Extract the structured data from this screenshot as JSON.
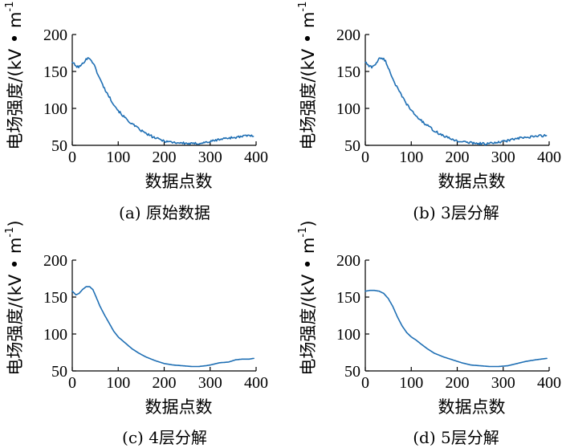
{
  "chart_data": [
    {
      "type": "line",
      "caption": "(a)  原始数据",
      "xlabel": "数据点数",
      "ylabel_main": "电场强度/(kV • m",
      "ylabel_sup": "-1",
      "ylabel_close": ")",
      "xlim": [
        0,
        400
      ],
      "ylim": [
        50,
        200
      ],
      "xticks": [
        "0",
        "100",
        "200",
        "300",
        "400"
      ],
      "yticks": [
        "50",
        "100",
        "150",
        "200"
      ],
      "grid": false,
      "noisy": true,
      "series": [
        {
          "x": [
            0,
            8,
            15,
            22,
            30,
            38,
            45,
            52,
            60,
            70,
            80,
            90,
            100,
            115,
            130,
            145,
            160,
            180,
            200,
            220,
            240,
            260,
            280,
            300,
            320,
            340,
            360,
            380,
            395
          ],
          "y": [
            163,
            157,
            156,
            160,
            167,
            168,
            162,
            152,
            140,
            127,
            116,
            106,
            97,
            87,
            79,
            72,
            66,
            60,
            56,
            54,
            53,
            52,
            53,
            55,
            58,
            60,
            61,
            63,
            63
          ]
        }
      ]
    },
    {
      "type": "line",
      "caption": "(b)  3层分解",
      "xlabel": "数据点数",
      "ylabel_main": "电场强度/(kV • m",
      "ylabel_sup": "-1",
      "ylabel_close": ")",
      "xlim": [
        0,
        400
      ],
      "ylim": [
        50,
        200
      ],
      "xticks": [
        "0",
        "100",
        "200",
        "300",
        "400"
      ],
      "yticks": [
        "50",
        "100",
        "150",
        "200"
      ],
      "grid": false,
      "noisy": true,
      "series": [
        {
          "x": [
            0,
            8,
            15,
            22,
            30,
            38,
            45,
            52,
            60,
            70,
            80,
            90,
            100,
            115,
            130,
            145,
            160,
            180,
            200,
            220,
            240,
            260,
            280,
            300,
            320,
            340,
            360,
            380,
            395
          ],
          "y": [
            163,
            157,
            156,
            160,
            167,
            168,
            163,
            152,
            140,
            127,
            116,
            106,
            97,
            87,
            79,
            72,
            66,
            60,
            56,
            54,
            53,
            52,
            53,
            55,
            58,
            60,
            61,
            63,
            63
          ]
        }
      ]
    },
    {
      "type": "line",
      "caption": "(c)  4层分解",
      "xlabel": "数据点数",
      "ylabel_main": "电场强度/(kV • m",
      "ylabel_sup": "-1",
      "ylabel_close": ")",
      "xlim": [
        0,
        400
      ],
      "ylim": [
        50,
        200
      ],
      "xticks": [
        "0",
        "100",
        "200",
        "300",
        "400"
      ],
      "yticks": [
        "50",
        "100",
        "150",
        "200"
      ],
      "grid": false,
      "noisy": false,
      "series": [
        {
          "x": [
            0,
            8,
            15,
            22,
            30,
            38,
            45,
            52,
            60,
            70,
            80,
            90,
            100,
            115,
            130,
            145,
            160,
            180,
            200,
            220,
            240,
            260,
            275,
            290,
            300,
            320,
            340,
            355,
            370,
            385,
            395
          ],
          "y": [
            158,
            153,
            155,
            160,
            164,
            164,
            160,
            150,
            138,
            126,
            115,
            104,
            96,
            88,
            80,
            74,
            69,
            64,
            60,
            58,
            57,
            56,
            56,
            57,
            58,
            61,
            62,
            65,
            66,
            66,
            67
          ]
        }
      ]
    },
    {
      "type": "line",
      "caption": "(d)  5层分解",
      "xlabel": "数据点数",
      "ylabel_main": "电场强度/(kV • m",
      "ylabel_sup": "-1",
      "ylabel_close": ")",
      "xlim": [
        0,
        400
      ],
      "ylim": [
        50,
        200
      ],
      "xticks": [
        "0",
        "100",
        "200",
        "300",
        "400"
      ],
      "yticks": [
        "50",
        "100",
        "150",
        "200"
      ],
      "grid": false,
      "noisy": false,
      "series": [
        {
          "x": [
            0,
            10,
            20,
            30,
            40,
            50,
            60,
            70,
            80,
            90,
            100,
            110,
            120,
            135,
            150,
            170,
            190,
            210,
            230,
            250,
            270,
            290,
            310,
            330,
            350,
            370,
            395
          ],
          "y": [
            158,
            159,
            159,
            158,
            155,
            148,
            137,
            123,
            111,
            102,
            96,
            92,
            87,
            80,
            74,
            69,
            65,
            61,
            58,
            57,
            56,
            56,
            57,
            60,
            63,
            65,
            67
          ]
        }
      ]
    }
  ]
}
